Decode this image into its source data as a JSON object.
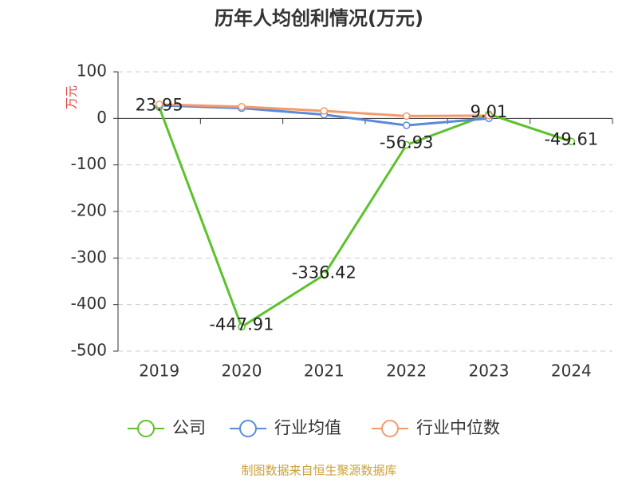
{
  "chart_data": {
    "type": "line",
    "title": "历年人均创利情况(万元)",
    "y_label": "万元",
    "categories": [
      "2019",
      "2020",
      "2021",
      "2022",
      "2023",
      "2024"
    ],
    "series": [
      {
        "name": "公司",
        "color": "#5cc22c",
        "values": [
          23.95,
          -447.91,
          -336.42,
          -56.93,
          9.01,
          -49.61
        ],
        "show_labels": true
      },
      {
        "name": "行业均值",
        "color": "#5b8bd8",
        "values": [
          28,
          22,
          8,
          -15,
          0,
          null
        ]
      },
      {
        "name": "行业中位数",
        "color": "#f39a6b",
        "values": [
          30,
          25,
          16,
          5,
          6,
          null
        ]
      }
    ],
    "ylim": [
      -500,
      100
    ],
    "yticks": [
      -500,
      -400,
      -300,
      -200,
      -100,
      0,
      100
    ],
    "grid": true,
    "legend": "bottom",
    "source": "制图数据来自恒生聚源数据库"
  }
}
